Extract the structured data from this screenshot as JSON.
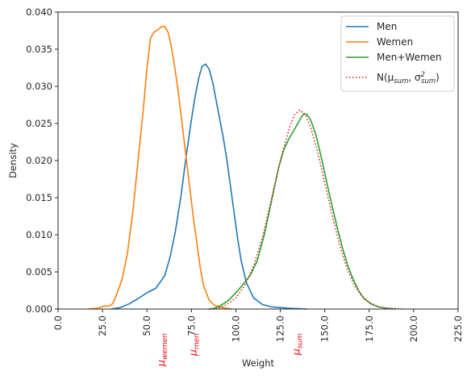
{
  "chart_data": {
    "type": "line",
    "title": "",
    "xlabel": "Weight",
    "ylabel": "Density",
    "xlim": [
      0,
      225
    ],
    "ylim": [
      0,
      0.04
    ],
    "grid": false,
    "legend_placement": "top-right",
    "x_ticks": [
      "0.0",
      "25.0",
      "50.0",
      "75.0",
      "100.0",
      "125.0",
      "150.0",
      "175.0",
      "200.0",
      "225.0"
    ],
    "y_ticks": [
      "0.000",
      "0.005",
      "0.010",
      "0.015",
      "0.020",
      "0.025",
      "0.030",
      "0.035",
      "0.040"
    ],
    "series": [
      {
        "name": "Men",
        "color": "#1f77b4",
        "style": "solid",
        "points": [
          [
            30,
            0
          ],
          [
            35,
            0.0002
          ],
          [
            40,
            0.0007
          ],
          [
            45,
            0.0014
          ],
          [
            50,
            0.0022
          ],
          [
            55,
            0.0028
          ],
          [
            60,
            0.0045
          ],
          [
            63,
            0.007
          ],
          [
            66,
            0.0105
          ],
          [
            69,
            0.015
          ],
          [
            72,
            0.0205
          ],
          [
            75,
            0.0255
          ],
          [
            77,
            0.0285
          ],
          [
            79,
            0.031
          ],
          [
            81,
            0.0327
          ],
          [
            83,
            0.033
          ],
          [
            85,
            0.0323
          ],
          [
            87,
            0.0305
          ],
          [
            89,
            0.028
          ],
          [
            91,
            0.0255
          ],
          [
            93,
            0.023
          ],
          [
            95,
            0.02
          ],
          [
            97,
            0.0165
          ],
          [
            99,
            0.013
          ],
          [
            101,
            0.0095
          ],
          [
            103,
            0.0065
          ],
          [
            106,
            0.0035
          ],
          [
            110,
            0.0015
          ],
          [
            115,
            0.0006
          ],
          [
            120,
            0.0003
          ],
          [
            130,
            0.0001
          ],
          [
            140,
            0
          ]
        ]
      },
      {
        "name": "Wemen",
        "color": "#ff7f0e",
        "style": "solid",
        "points": [
          [
            17,
            0
          ],
          [
            22,
            0.0001
          ],
          [
            26,
            0.0004
          ],
          [
            29,
            0.0004
          ],
          [
            31,
            0.0008
          ],
          [
            33,
            0.002
          ],
          [
            36,
            0.004
          ],
          [
            39,
            0.0075
          ],
          [
            42,
            0.013
          ],
          [
            45,
            0.02
          ],
          [
            48,
            0.027
          ],
          [
            50,
            0.0325
          ],
          [
            52,
            0.0365
          ],
          [
            54,
            0.0373
          ],
          [
            56,
            0.0376
          ],
          [
            58,
            0.038
          ],
          [
            60,
            0.0381
          ],
          [
            62,
            0.0372
          ],
          [
            64,
            0.035
          ],
          [
            66,
            0.032
          ],
          [
            68,
            0.0285
          ],
          [
            70,
            0.0245
          ],
          [
            72,
            0.0205
          ],
          [
            74,
            0.0165
          ],
          [
            76,
            0.0125
          ],
          [
            78,
            0.009
          ],
          [
            80,
            0.0055
          ],
          [
            82,
            0.003
          ],
          [
            85,
            0.0012
          ],
          [
            88,
            0.0005
          ],
          [
            92,
            0.0002
          ],
          [
            98,
            0
          ]
        ]
      },
      {
        "name": "Men+Wemen",
        "color": "#2ca02c",
        "style": "solid",
        "points": [
          [
            85,
            0
          ],
          [
            88,
            0.0001
          ],
          [
            90,
            0.0003
          ],
          [
            93,
            0.0007
          ],
          [
            96,
            0.0012
          ],
          [
            100,
            0.0022
          ],
          [
            104,
            0.0033
          ],
          [
            108,
            0.0045
          ],
          [
            112,
            0.0065
          ],
          [
            116,
            0.01
          ],
          [
            120,
            0.0145
          ],
          [
            124,
            0.019
          ],
          [
            127,
            0.0215
          ],
          [
            130,
            0.023
          ],
          [
            133,
            0.0242
          ],
          [
            136,
            0.0255
          ],
          [
            138,
            0.0263
          ],
          [
            140,
            0.0262
          ],
          [
            142,
            0.0255
          ],
          [
            145,
            0.0235
          ],
          [
            148,
            0.0205
          ],
          [
            151,
            0.0172
          ],
          [
            154,
            0.014
          ],
          [
            157,
            0.011
          ],
          [
            160,
            0.0082
          ],
          [
            163,
            0.0058
          ],
          [
            166,
            0.004
          ],
          [
            169,
            0.0025
          ],
          [
            172,
            0.0014
          ],
          [
            176,
            0.0007
          ],
          [
            180,
            0.0003
          ],
          [
            185,
            0.0001
          ],
          [
            190,
            0
          ]
        ]
      },
      {
        "name": "N(μsum, σ²sum)",
        "color": "#d62728",
        "style": "dotted",
        "points": [
          [
            85,
            0
          ],
          [
            90,
            0.0001
          ],
          [
            95,
            0.0006
          ],
          [
            100,
            0.0015
          ],
          [
            105,
            0.0032
          ],
          [
            110,
            0.0058
          ],
          [
            115,
            0.0097
          ],
          [
            120,
            0.0148
          ],
          [
            125,
            0.02
          ],
          [
            130,
            0.0243
          ],
          [
            133,
            0.0262
          ],
          [
            136,
            0.0268
          ],
          [
            139,
            0.0262
          ],
          [
            142,
            0.0245
          ],
          [
            146,
            0.0212
          ],
          [
            150,
            0.017
          ],
          [
            154,
            0.0128
          ],
          [
            158,
            0.009
          ],
          [
            162,
            0.0058
          ],
          [
            166,
            0.0035
          ],
          [
            170,
            0.002
          ],
          [
            175,
            0.0009
          ],
          [
            180,
            0.0003
          ],
          [
            185,
            0.0001
          ],
          [
            195,
            0
          ]
        ]
      }
    ],
    "legend_entries": [
      {
        "label": "Men",
        "color": "#1f77b4",
        "style": "solid"
      },
      {
        "label": "Wemen",
        "color": "#ff7f0e",
        "style": "solid"
      },
      {
        "label": "Men+Wemen",
        "color": "#2ca02c",
        "style": "solid"
      },
      {
        "label_main": "N(μ",
        "label_sub1": "sum",
        "label_mid": ", σ",
        "label_sup": "2",
        "label_sub2": "sum",
        "label_end": ")",
        "color": "#d62728",
        "style": "dotted"
      }
    ],
    "annotations": [
      {
        "label_main": "μ",
        "label_sub": "wemen",
        "x": 58,
        "color": "#ff0000"
      },
      {
        "label_main": "μ",
        "label_sub": "men",
        "x": 76,
        "color": "#ff0000"
      },
      {
        "label_main": "μ",
        "label_sub": "sum",
        "x": 134,
        "color": "#ff0000"
      }
    ]
  }
}
